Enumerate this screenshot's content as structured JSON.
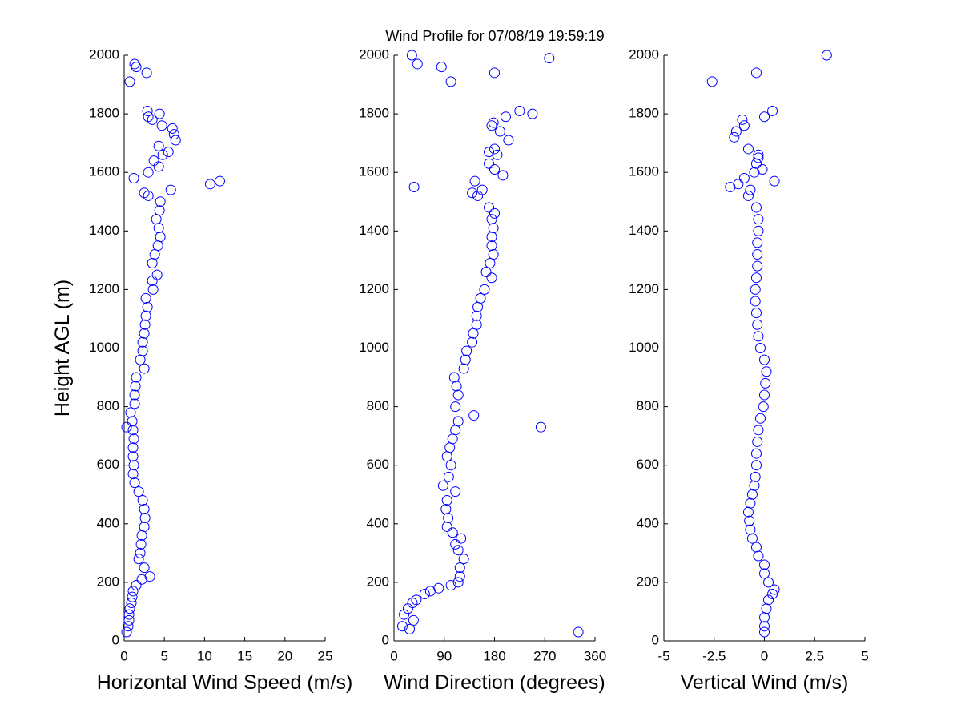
{
  "title": "Wind Profile for  07/08/19 19:59:19",
  "chart_data": [
    {
      "type": "scatter",
      "xlabel": "Horizontal Wind Speed (m/s)",
      "ylabel": "Height AGL (m)",
      "color": "#0000ff",
      "xlim": [
        0,
        25
      ],
      "xticks": [
        0,
        5,
        10,
        15,
        20,
        25
      ],
      "ylim": [
        0,
        2000
      ],
      "yticks": [
        0,
        200,
        400,
        600,
        800,
        1000,
        1200,
        1400,
        1600,
        1800,
        2000
      ],
      "x": [
        0.3,
        0.5,
        0.6,
        0.6,
        0.7,
        0.9,
        1.0,
        1.1,
        1.5,
        2.2,
        3.2,
        2.5,
        1.8,
        2.0,
        2.1,
        2.2,
        2.5,
        2.6,
        2.5,
        2.3,
        1.8,
        1.3,
        1.1,
        1.2,
        1.1,
        1.1,
        1.2,
        1.1,
        0.3,
        1.0,
        0.8,
        1.3,
        1.3,
        1.4,
        1.5,
        2.5,
        2.0,
        2.3,
        2.3,
        2.5,
        2.6,
        2.7,
        2.9,
        2.7,
        3.6,
        3.5,
        4.1,
        3.5,
        3.8,
        4.2,
        4.5,
        4.3,
        4.0,
        4.4,
        4.5,
        3.0,
        2.5,
        5.8,
        10.7,
        11.9,
        1.2,
        3.0,
        4.3,
        3.7,
        4.8,
        5.5,
        4.3,
        6.4,
        6.2,
        6.0,
        4.7,
        3.5,
        3.0,
        4.4,
        2.9,
        0.7,
        2.8,
        1.5,
        1.3
      ],
      "y": [
        30,
        50,
        70,
        90,
        110,
        130,
        150,
        170,
        190,
        210,
        220,
        250,
        280,
        300,
        330,
        360,
        390,
        420,
        450,
        480,
        510,
        540,
        570,
        600,
        630,
        660,
        690,
        720,
        730,
        750,
        780,
        810,
        840,
        870,
        900,
        930,
        960,
        990,
        1020,
        1050,
        1080,
        1110,
        1140,
        1170,
        1200,
        1230,
        1250,
        1290,
        1320,
        1350,
        1380,
        1410,
        1440,
        1470,
        1500,
        1520,
        1530,
        1540,
        1560,
        1570,
        1580,
        1600,
        1620,
        1640,
        1660,
        1670,
        1690,
        1710,
        1730,
        1750,
        1760,
        1780,
        1790,
        1800,
        1810,
        1910,
        1940,
        1960,
        1970
      ]
    },
    {
      "type": "scatter",
      "xlabel": "Wind Direction (degrees)",
      "color": "#0000ff",
      "xlim": [
        0,
        360
      ],
      "xticks": [
        0,
        90,
        180,
        270,
        360
      ],
      "ylim": [
        0,
        2000
      ],
      "yticks": [
        0,
        200,
        400,
        600,
        800,
        1000,
        1200,
        1400,
        1600,
        1800,
        2000
      ],
      "x": [
        330,
        28,
        15,
        35,
        18,
        25,
        33,
        40,
        55,
        65,
        80,
        102,
        115,
        118,
        118,
        125,
        115,
        110,
        120,
        105,
        95,
        97,
        93,
        95,
        110,
        88,
        98,
        102,
        95,
        100,
        105,
        110,
        263,
        115,
        143,
        110,
        115,
        112,
        108,
        125,
        128,
        130,
        140,
        142,
        148,
        148,
        150,
        155,
        162,
        175,
        165,
        172,
        178,
        175,
        175,
        178,
        175,
        180,
        170,
        150,
        140,
        158,
        36,
        145,
        195,
        180,
        170,
        185,
        170,
        180,
        205,
        190,
        175,
        178,
        200,
        248,
        225,
        102,
        180,
        85,
        42,
        278,
        32
      ],
      "y": [
        30,
        40,
        50,
        70,
        90,
        110,
        130,
        140,
        160,
        170,
        180,
        190,
        200,
        220,
        250,
        280,
        310,
        330,
        350,
        370,
        390,
        420,
        450,
        480,
        510,
        530,
        560,
        600,
        630,
        660,
        690,
        720,
        730,
        750,
        770,
        800,
        840,
        870,
        900,
        930,
        960,
        990,
        1020,
        1050,
        1080,
        1110,
        1140,
        1170,
        1200,
        1240,
        1260,
        1290,
        1320,
        1350,
        1380,
        1410,
        1440,
        1460,
        1480,
        1520,
        1530,
        1540,
        1550,
        1570,
        1590,
        1610,
        1630,
        1660,
        1670,
        1680,
        1710,
        1740,
        1760,
        1770,
        1790,
        1800,
        1810,
        1910,
        1940,
        1960,
        1970,
        1990,
        2000
      ]
    },
    {
      "type": "scatter",
      "xlabel": "Vertical Wind (m/s)",
      "color": "#0000ff",
      "xlim": [
        -5,
        5
      ],
      "xticks": [
        -5,
        -2.5,
        0,
        2.5,
        5
      ],
      "ylim": [
        0,
        2000
      ],
      "yticks": [
        0,
        200,
        400,
        600,
        800,
        1000,
        1200,
        1400,
        1600,
        1800,
        2000
      ],
      "x": [
        0,
        0,
        0,
        0.1,
        0.2,
        0.4,
        0.5,
        0.2,
        0,
        0,
        -0.3,
        -0.4,
        -0.6,
        -0.7,
        -0.75,
        -0.8,
        -0.7,
        -0.6,
        -0.5,
        -0.45,
        -0.4,
        -0.4,
        -0.35,
        -0.3,
        -0.2,
        -0.05,
        0,
        0.05,
        0.1,
        0,
        -0.2,
        -0.3,
        -0.35,
        -0.4,
        -0.45,
        -0.45,
        -0.4,
        -0.35,
        -0.35,
        -0.35,
        -0.3,
        -0.3,
        -0.4,
        -0.8,
        -0.7,
        -1.7,
        -1.3,
        0.5,
        -1.0,
        -0.5,
        -0.1,
        -0.4,
        -0.3,
        -0.3,
        -0.8,
        -1.5,
        -1.4,
        -1.0,
        -1.1,
        0,
        0.4,
        -2.6,
        -0.4,
        3.1
      ],
      "y": [
        30,
        50,
        80,
        110,
        140,
        160,
        175,
        200,
        230,
        260,
        290,
        320,
        350,
        380,
        410,
        440,
        470,
        500,
        530,
        560,
        600,
        640,
        680,
        720,
        760,
        800,
        840,
        880,
        920,
        960,
        1000,
        1040,
        1080,
        1120,
        1160,
        1200,
        1240,
        1280,
        1320,
        1360,
        1400,
        1440,
        1480,
        1520,
        1540,
        1550,
        1560,
        1570,
        1580,
        1600,
        1610,
        1630,
        1650,
        1660,
        1680,
        1720,
        1740,
        1760,
        1780,
        1790,
        1810,
        1910,
        1940,
        2000
      ]
    }
  ]
}
